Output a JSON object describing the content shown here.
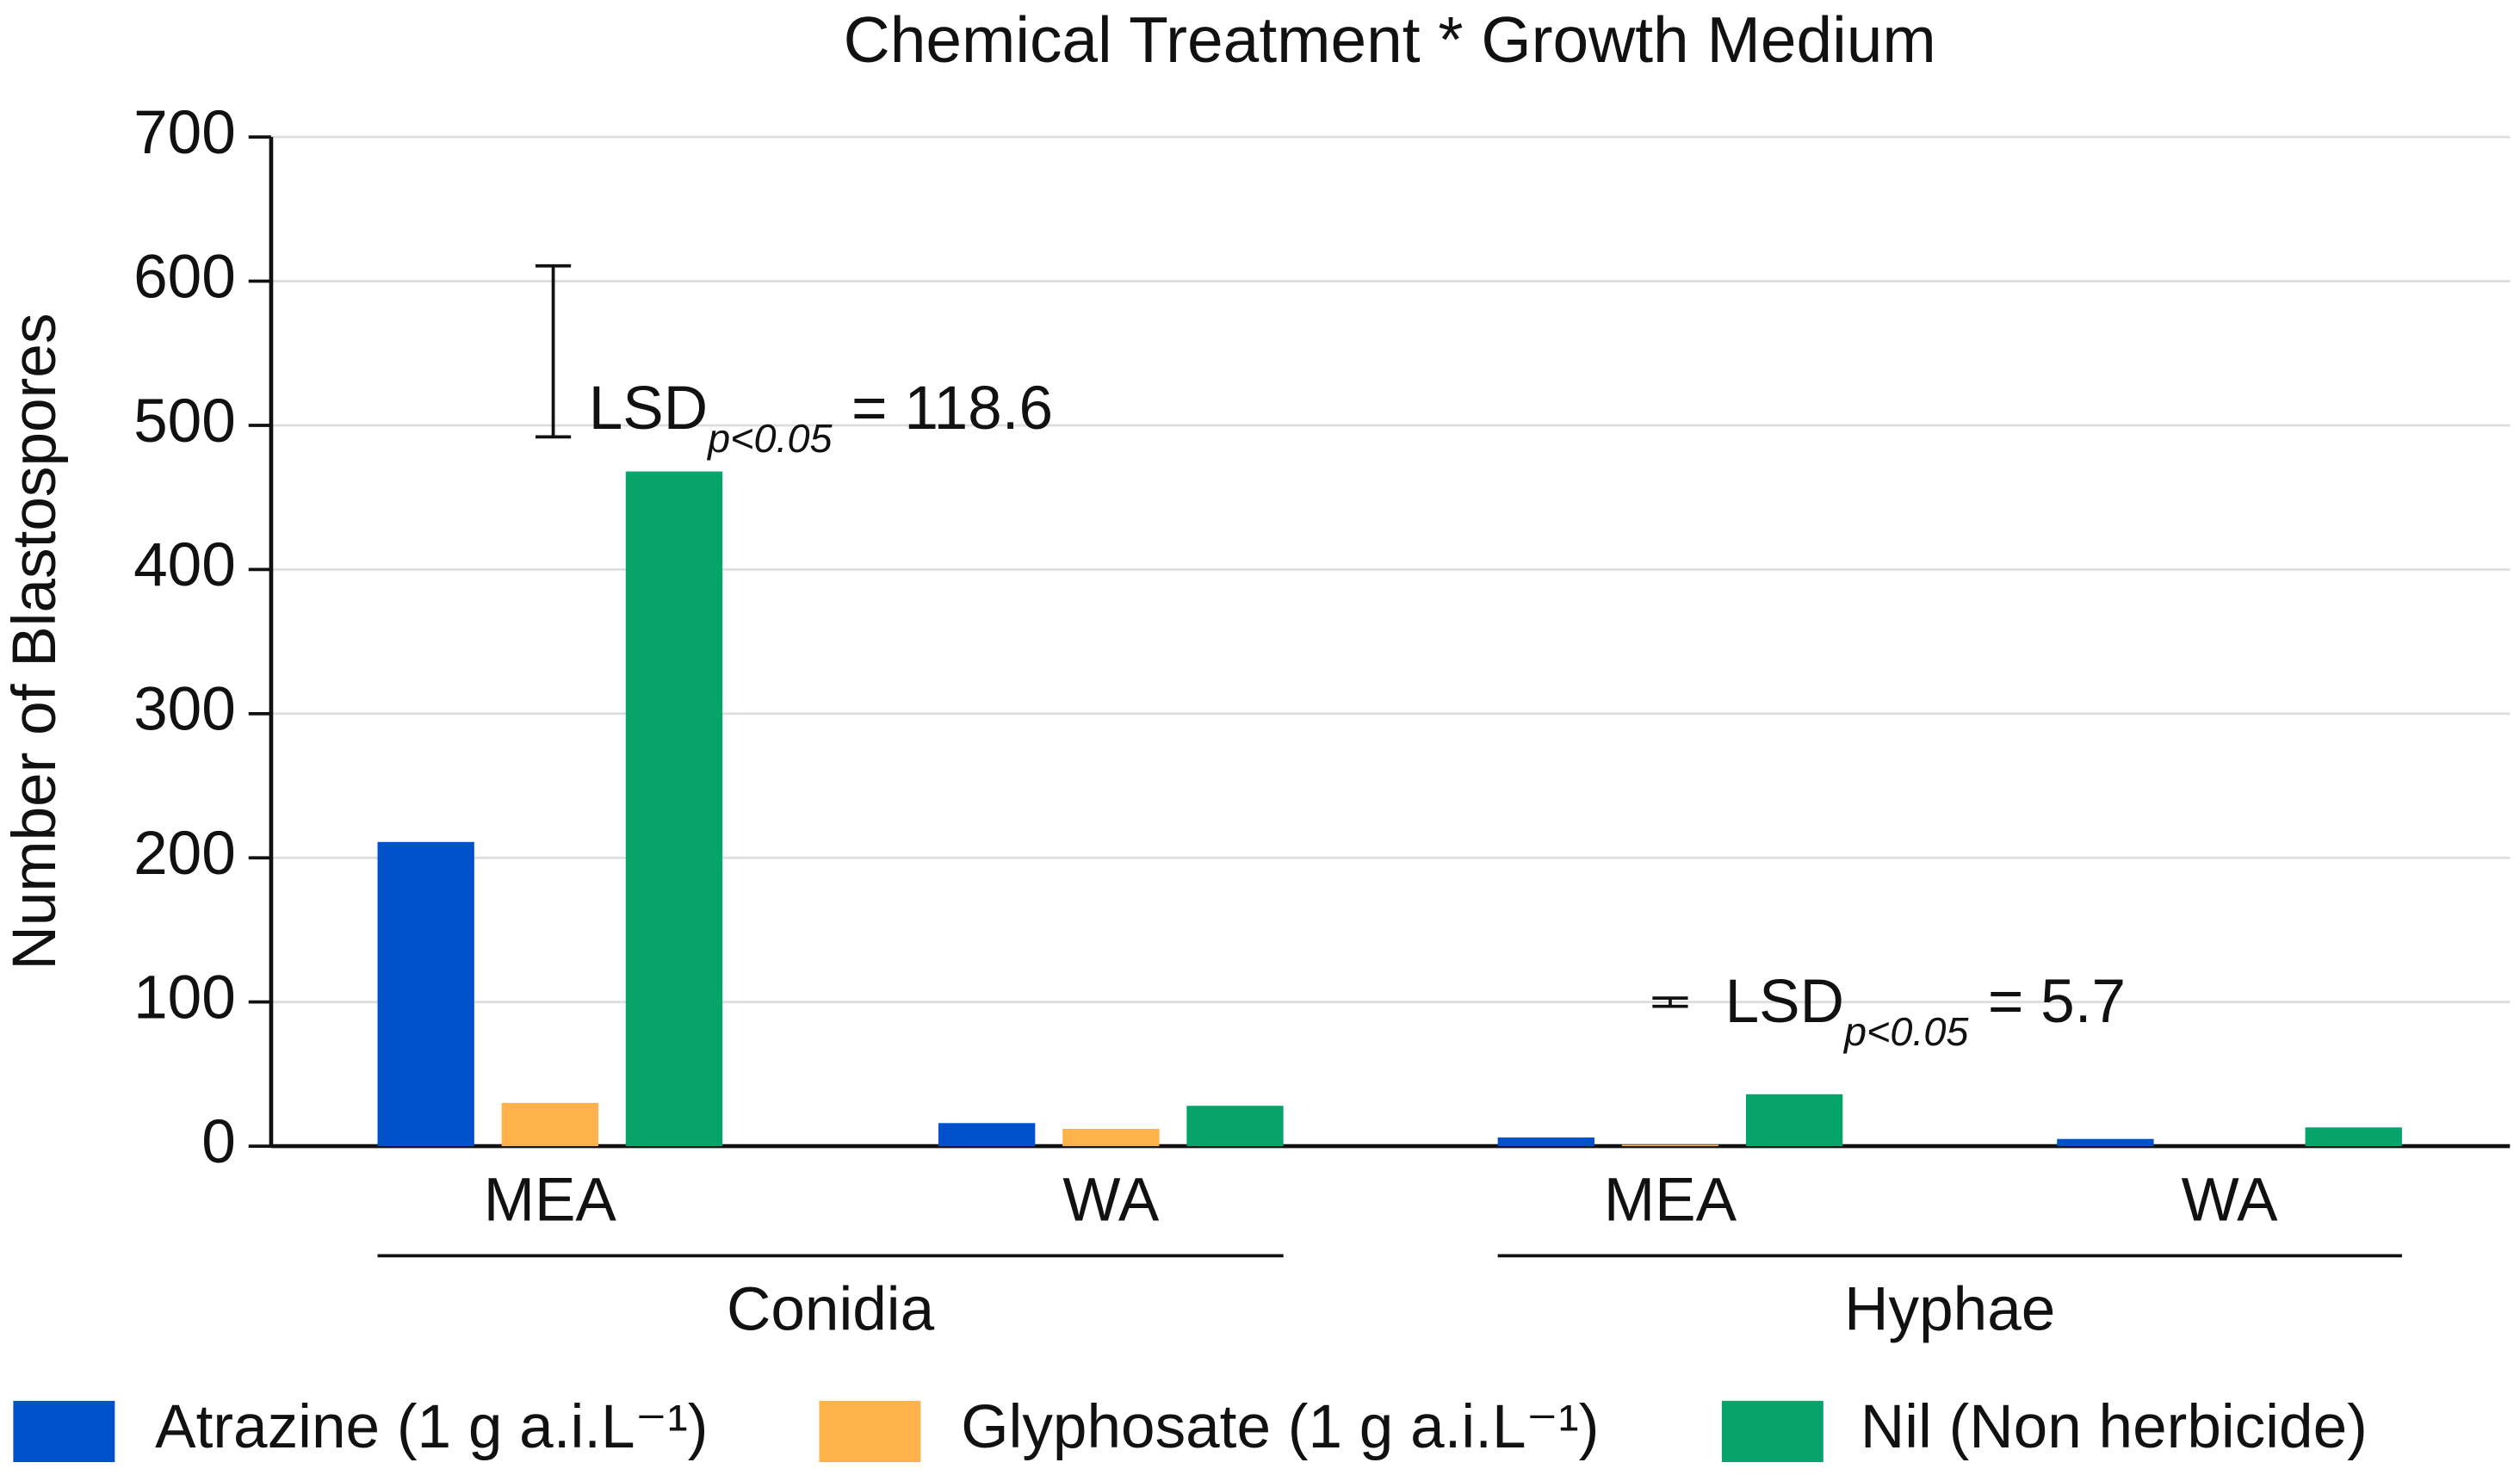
{
  "chart_data": {
    "type": "bar",
    "title": "Chemical Treatment * Growth Medium",
    "y_label": "Number of Blastospores",
    "categories": [
      "MEA",
      "WA",
      "MEA",
      "WA"
    ],
    "groups": [
      "Conidia",
      "Hyphae"
    ],
    "series": [
      {
        "name": "Atrazine (1 g a.i.L⁻¹)",
        "color": "#0052cc",
        "values": [
          211,
          16,
          6,
          5
        ]
      },
      {
        "name": "Glyphosate (1 g a.i.L⁻¹)",
        "color": "#ffb24a",
        "values": [
          30,
          12,
          1,
          0
        ]
      },
      {
        "name": "Nil (Non herbicide)",
        "color": "#06a36b",
        "values": [
          468,
          28,
          36,
          13
        ]
      }
    ],
    "annotations": [
      {
        "text": "LSD",
        "subscript": "p<0.05",
        "value_label": "= 118.6",
        "value": 118.6,
        "y_start": 492
      },
      {
        "text": "LSD",
        "subscript": "p<0.05",
        "value_label": "= 5.7",
        "value": 5.7,
        "y_start": 97
      }
    ],
    "ylim": [
      0,
      700
    ],
    "yticks": [
      0,
      100,
      200,
      300,
      400,
      500,
      600,
      700
    ],
    "grid": true
  }
}
